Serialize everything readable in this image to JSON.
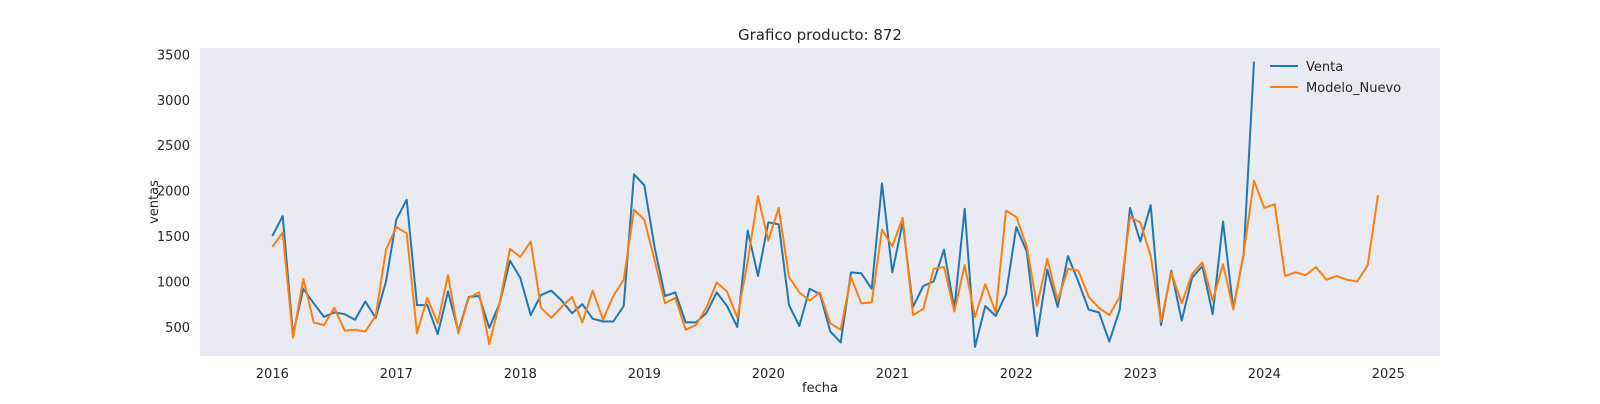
{
  "chart_data": {
    "type": "line",
    "title": "Grafico producto: 872",
    "xlabel": "fecha",
    "ylabel": "ventas",
    "x_ticks": [
      "2016",
      "2017",
      "2018",
      "2019",
      "2020",
      "2021",
      "2022",
      "2023",
      "2024",
      "2025"
    ],
    "y_ticks": [
      500,
      1000,
      1500,
      2000,
      2500,
      3000,
      3500
    ],
    "xlim": [
      "2015-06",
      "2025-06"
    ],
    "ylim": [
      180,
      3570
    ],
    "grid": false,
    "legend_position": "top-right",
    "series": [
      {
        "name": "Venta",
        "color": "#1f77b4",
        "x": [
          "2016-01",
          "2016-02",
          "2016-03",
          "2016-04",
          "2016-05",
          "2016-06",
          "2016-07",
          "2016-08",
          "2016-09",
          "2016-10",
          "2016-11",
          "2016-12",
          "2017-01",
          "2017-02",
          "2017-03",
          "2017-04",
          "2017-05",
          "2017-06",
          "2017-07",
          "2017-08",
          "2017-09",
          "2017-10",
          "2017-11",
          "2017-12",
          "2018-01",
          "2018-02",
          "2018-03",
          "2018-04",
          "2018-05",
          "2018-06",
          "2018-07",
          "2018-08",
          "2018-09",
          "2018-10",
          "2018-11",
          "2018-12",
          "2019-01",
          "2019-02",
          "2019-03",
          "2019-04",
          "2019-05",
          "2019-06",
          "2019-07",
          "2019-08",
          "2019-09",
          "2019-10",
          "2019-11",
          "2019-12",
          "2020-01",
          "2020-02",
          "2020-03",
          "2020-04",
          "2020-05",
          "2020-06",
          "2020-07",
          "2020-08",
          "2020-09",
          "2020-10",
          "2020-11",
          "2020-12",
          "2021-01",
          "2021-02",
          "2021-03",
          "2021-04",
          "2021-05",
          "2021-06",
          "2021-07",
          "2021-08",
          "2021-09",
          "2021-10",
          "2021-11",
          "2021-12",
          "2022-01",
          "2022-02",
          "2022-03",
          "2022-04",
          "2022-05",
          "2022-06",
          "2022-07",
          "2022-08",
          "2022-09",
          "2022-10",
          "2022-11",
          "2022-12",
          "2023-01",
          "2023-02",
          "2023-03",
          "2023-04",
          "2023-05",
          "2023-06",
          "2023-07",
          "2023-08",
          "2023-09",
          "2023-10",
          "2023-11",
          "2023-12"
        ],
        "values": [
          1500,
          1720,
          420,
          920,
          760,
          610,
          660,
          640,
          580,
          780,
          600,
          1000,
          1680,
          1900,
          740,
          740,
          420,
          890,
          450,
          830,
          840,
          490,
          760,
          1230,
          1040,
          630,
          850,
          900,
          790,
          650,
          750,
          590,
          560,
          560,
          730,
          2180,
          2060,
          1370,
          840,
          880,
          550,
          550,
          650,
          880,
          730,
          500,
          1560,
          1060,
          1650,
          1630,
          740,
          510,
          920,
          860,
          450,
          330,
          1100,
          1090,
          920,
          2080,
          1100,
          1650,
          720,
          950,
          1000,
          1350,
          700,
          1800,
          280,
          730,
          620,
          860,
          1600,
          1330,
          400,
          1130,
          720,
          1280,
          1000,
          690,
          660,
          340,
          690,
          1810,
          1440,
          1840,
          520,
          1120,
          570,
          1040,
          1170,
          640,
          1660,
          700,
          1300,
          3420
        ]
      },
      {
        "name": "Modelo_Nuevo",
        "color": "#ff7f0e",
        "x": [
          "2016-01",
          "2016-02",
          "2016-03",
          "2016-04",
          "2016-05",
          "2016-06",
          "2016-07",
          "2016-08",
          "2016-09",
          "2016-10",
          "2016-11",
          "2016-12",
          "2017-01",
          "2017-02",
          "2017-03",
          "2017-04",
          "2017-05",
          "2017-06",
          "2017-07",
          "2017-08",
          "2017-09",
          "2017-10",
          "2017-11",
          "2017-12",
          "2018-01",
          "2018-02",
          "2018-03",
          "2018-04",
          "2018-05",
          "2018-06",
          "2018-07",
          "2018-08",
          "2018-09",
          "2018-10",
          "2018-11",
          "2018-12",
          "2019-01",
          "2019-02",
          "2019-03",
          "2019-04",
          "2019-05",
          "2019-06",
          "2019-07",
          "2019-08",
          "2019-09",
          "2019-10",
          "2019-11",
          "2019-12",
          "2020-01",
          "2020-02",
          "2020-03",
          "2020-04",
          "2020-05",
          "2020-06",
          "2020-07",
          "2020-08",
          "2020-09",
          "2020-10",
          "2020-11",
          "2020-12",
          "2021-01",
          "2021-02",
          "2021-03",
          "2021-04",
          "2021-05",
          "2021-06",
          "2021-07",
          "2021-08",
          "2021-09",
          "2021-10",
          "2021-11",
          "2021-12",
          "2022-01",
          "2022-02",
          "2022-03",
          "2022-04",
          "2022-05",
          "2022-06",
          "2022-07",
          "2022-08",
          "2022-09",
          "2022-10",
          "2022-11",
          "2022-12",
          "2023-01",
          "2023-02",
          "2023-03",
          "2023-04",
          "2023-05",
          "2023-06",
          "2023-07",
          "2023-08",
          "2023-09",
          "2023-10",
          "2023-11",
          "2023-12",
          "2024-01",
          "2024-02",
          "2024-03",
          "2024-04",
          "2024-05",
          "2024-06",
          "2024-07",
          "2024-08",
          "2024-09",
          "2024-10",
          "2024-11",
          "2024-12"
        ],
        "values": [
          1380,
          1540,
          380,
          1030,
          550,
          520,
          710,
          460,
          470,
          450,
          620,
          1350,
          1600,
          1530,
          430,
          820,
          540,
          1070,
          430,
          820,
          880,
          310,
          770,
          1360,
          1270,
          1440,
          710,
          600,
          720,
          830,
          550,
          900,
          580,
          840,
          1020,
          1790,
          1680,
          1230,
          760,
          820,
          470,
          520,
          710,
          990,
          890,
          600,
          1220,
          1940,
          1450,
          1810,
          1050,
          880,
          790,
          880,
          540,
          470,
          1050,
          760,
          770,
          1570,
          1390,
          1700,
          630,
          700,
          1140,
          1160,
          670,
          1180,
          610,
          970,
          660,
          1780,
          1710,
          1390,
          730,
          1250,
          790,
          1140,
          1120,
          830,
          710,
          630,
          830,
          1710,
          1650,
          1280,
          560,
          1100,
          760,
          1080,
          1210,
          790,
          1190,
          690,
          1310,
          2110,
          1810,
          1850,
          1060,
          1100,
          1070,
          1160,
          1020,
          1060,
          1020,
          1000,
          1180,
          1950
        ]
      }
    ]
  }
}
